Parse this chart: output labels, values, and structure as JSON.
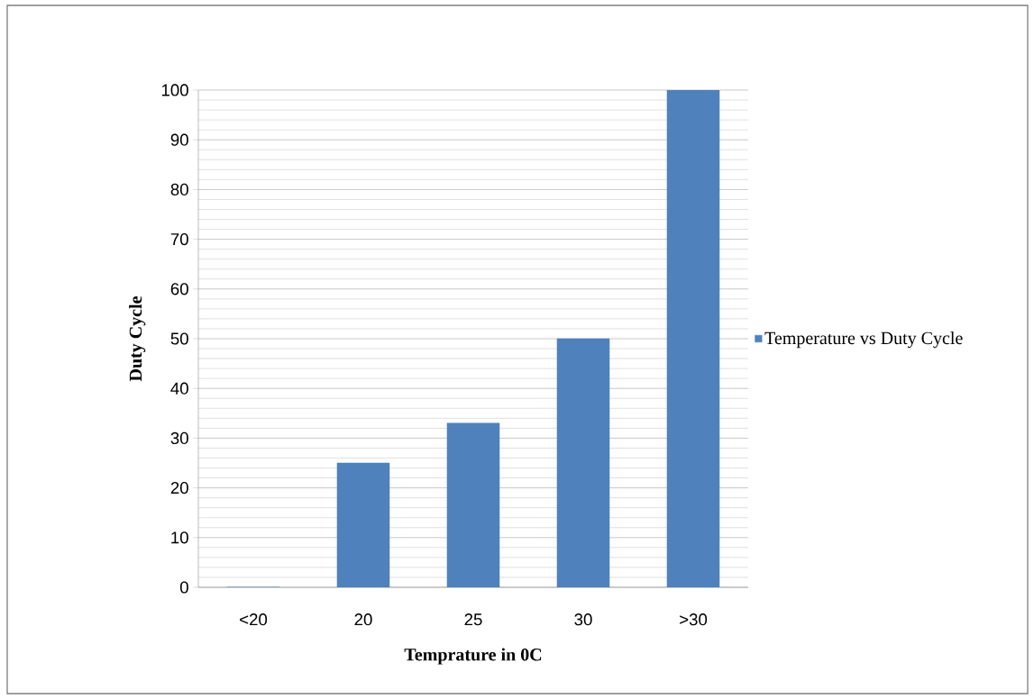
{
  "chart_data": {
    "type": "bar",
    "xlabel": "Temprature in 0C",
    "ylabel": "Duty Cycle",
    "categories": [
      "<20",
      "20",
      "25",
      "30",
      ">30"
    ],
    "series": [
      {
        "name": "Temperature vs Duty Cycle",
        "color": "#4f81bd",
        "values": [
          0,
          25,
          33,
          50,
          100
        ]
      }
    ],
    "ylim": [
      0,
      100
    ],
    "yticks": [
      0,
      10,
      20,
      30,
      40,
      50,
      60,
      70,
      80,
      90,
      100
    ],
    "grid": "y",
    "legend": "right"
  }
}
